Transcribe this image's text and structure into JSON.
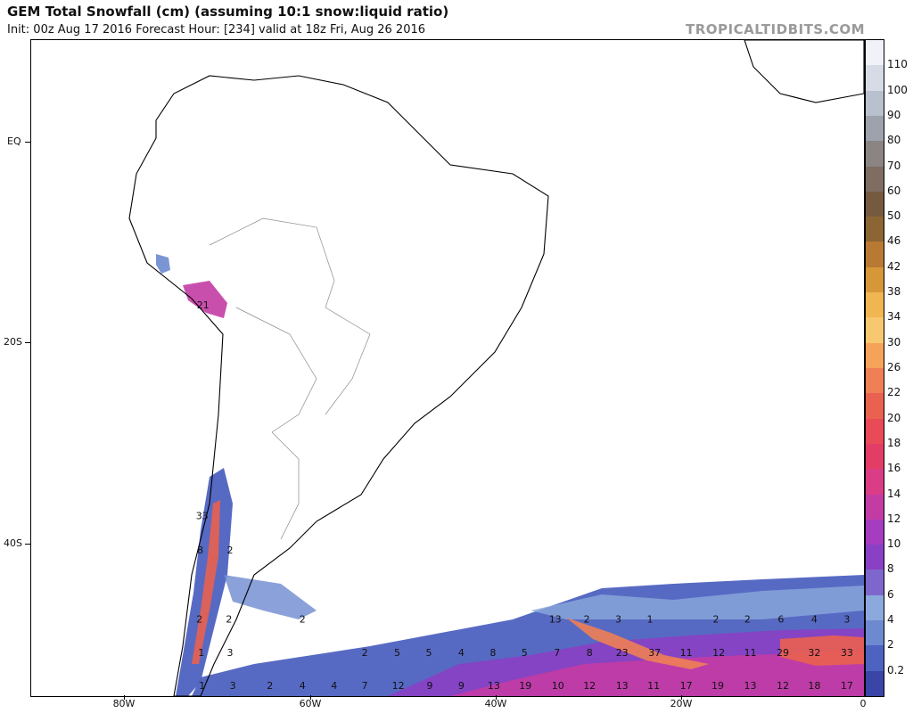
{
  "header": {
    "title": "GEM Total Snowfall (cm) (assuming 10:1 snow:liquid ratio)",
    "subtitle": "Init: 00z Aug 17 2016   Forecast Hour: [234]   valid at 18z Fri, Aug 26 2016",
    "brand": "TROPICALTIDBITS.COM"
  },
  "axes": {
    "latitudes": [
      "EQ",
      "20S",
      "40S"
    ],
    "longitudes": [
      "80W",
      "60W",
      "40W",
      "20W",
      "0"
    ]
  },
  "colorbar": {
    "labels": [
      "110",
      "100",
      "90",
      "80",
      "70",
      "60",
      "50",
      "46",
      "42",
      "38",
      "34",
      "30",
      "26",
      "22",
      "20",
      "18",
      "16",
      "14",
      "12",
      "10",
      "8",
      "6",
      "4",
      "2",
      "0.2"
    ],
    "colors": [
      "#f0f2f8",
      "#d6dbe6",
      "#b9c0ce",
      "#9ea2ad",
      "#8a8583",
      "#7e6d60",
      "#755a3f",
      "#8c6534",
      "#b87a33",
      "#d69739",
      "#f0b651",
      "#f7c870",
      "#f6a35a",
      "#f07f55",
      "#ea6150",
      "#e84a57",
      "#e33d65",
      "#da3d85",
      "#c33ca4",
      "#a63cbf",
      "#8a40c4",
      "#7e67cc",
      "#8ba9dc",
      "#6d89cf",
      "#4e62c0",
      "#3a45a8"
    ]
  },
  "snow_labels": [
    {
      "lon": -71.5,
      "lat": -16.5,
      "v": "21"
    },
    {
      "lon": -71.6,
      "lat": -37.5,
      "v": "33"
    },
    {
      "lon": -71.8,
      "lat": -40.9,
      "v": "8"
    },
    {
      "lon": -68.6,
      "lat": -40.9,
      "v": "2"
    },
    {
      "lon": -71.9,
      "lat": -47.8,
      "v": "2"
    },
    {
      "lon": -68.7,
      "lat": -47.8,
      "v": "2"
    },
    {
      "lon": -60.8,
      "lat": -47.8,
      "v": "2"
    },
    {
      "lon": -71.7,
      "lat": -51.1,
      "v": "1"
    },
    {
      "lon": -68.6,
      "lat": -51.1,
      "v": "3"
    },
    {
      "lon": -33.6,
      "lat": -47.8,
      "v": "13"
    },
    {
      "lon": -30.2,
      "lat": -47.8,
      "v": "2"
    },
    {
      "lon": -26.8,
      "lat": -47.8,
      "v": "3"
    },
    {
      "lon": -23.4,
      "lat": -47.8,
      "v": "1"
    },
    {
      "lon": -16.3,
      "lat": -47.8,
      "v": "2"
    },
    {
      "lon": -12.9,
      "lat": -47.8,
      "v": "2"
    },
    {
      "lon": -9.3,
      "lat": -47.8,
      "v": "6"
    },
    {
      "lon": -5.7,
      "lat": -47.8,
      "v": "4"
    },
    {
      "lon": -2.2,
      "lat": -47.8,
      "v": "3"
    },
    {
      "lon": -54.1,
      "lat": -51.1,
      "v": "2"
    },
    {
      "lon": -50.6,
      "lat": -51.1,
      "v": "5"
    },
    {
      "lon": -47.2,
      "lat": -51.1,
      "v": "5"
    },
    {
      "lon": -43.7,
      "lat": -51.1,
      "v": "4"
    },
    {
      "lon": -40.3,
      "lat": -51.1,
      "v": "8"
    },
    {
      "lon": -36.9,
      "lat": -51.1,
      "v": "5"
    },
    {
      "lon": -33.4,
      "lat": -51.1,
      "v": "7"
    },
    {
      "lon": -29.9,
      "lat": -51.1,
      "v": "8"
    },
    {
      "lon": -26.4,
      "lat": -51.1,
      "v": "23"
    },
    {
      "lon": -22.9,
      "lat": -51.1,
      "v": "37"
    },
    {
      "lon": -19.5,
      "lat": -51.1,
      "v": "11"
    },
    {
      "lon": -16.0,
      "lat": -51.1,
      "v": "12"
    },
    {
      "lon": -12.6,
      "lat": -51.1,
      "v": "11"
    },
    {
      "lon": -9.1,
      "lat": -51.1,
      "v": "29"
    },
    {
      "lon": -5.7,
      "lat": -51.1,
      "v": "32"
    },
    {
      "lon": -2.2,
      "lat": -51.1,
      "v": "33"
    },
    {
      "lon": -71.6,
      "lat": -54.4,
      "v": "1"
    },
    {
      "lon": -68.3,
      "lat": -54.4,
      "v": "3"
    },
    {
      "lon": -64.3,
      "lat": -54.4,
      "v": "2"
    },
    {
      "lon": -60.8,
      "lat": -54.4,
      "v": "4"
    },
    {
      "lon": -57.4,
      "lat": -54.4,
      "v": "4"
    },
    {
      "lon": -54.1,
      "lat": -54.4,
      "v": "7"
    },
    {
      "lon": -50.5,
      "lat": -54.4,
      "v": "12"
    },
    {
      "lon": -47.1,
      "lat": -54.4,
      "v": "9"
    },
    {
      "lon": -43.7,
      "lat": -54.4,
      "v": "9"
    },
    {
      "lon": -40.2,
      "lat": -54.4,
      "v": "13"
    },
    {
      "lon": -36.8,
      "lat": -54.4,
      "v": "19"
    },
    {
      "lon": -33.3,
      "lat": -54.4,
      "v": "10"
    },
    {
      "lon": -29.9,
      "lat": -54.4,
      "v": "12"
    },
    {
      "lon": -26.4,
      "lat": -54.4,
      "v": "13"
    },
    {
      "lon": -23.0,
      "lat": -54.4,
      "v": "11"
    },
    {
      "lon": -19.5,
      "lat": -54.4,
      "v": "17"
    },
    {
      "lon": -16.1,
      "lat": -54.4,
      "v": "19"
    },
    {
      "lon": -12.6,
      "lat": -54.4,
      "v": "13"
    },
    {
      "lon": -9.1,
      "lat": -54.4,
      "v": "12"
    },
    {
      "lon": -5.7,
      "lat": -54.4,
      "v": "18"
    },
    {
      "lon": -2.2,
      "lat": -54.4,
      "v": "17"
    }
  ]
}
